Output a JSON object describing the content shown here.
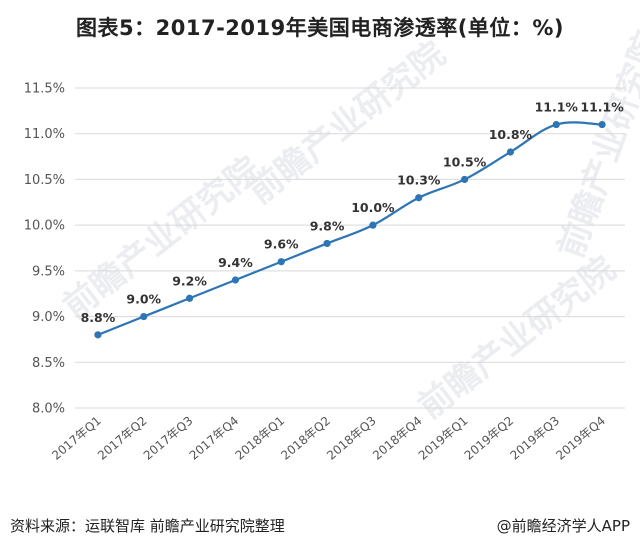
{
  "title": "图表5：2017-2019年美国电商渗透率(单位：%)",
  "footer": {
    "source": "资料来源：运联智库 前瞻产业研究院整理",
    "credit": "@前瞻经济学人APP"
  },
  "watermark": "前瞻产业研究院",
  "colors": {
    "line": "#2e75b6",
    "grid": "#d9d9d9"
  },
  "chart_data": {
    "type": "line",
    "title": "图表5：2017-2019年美国电商渗透率(单位：%)",
    "xlabel": "",
    "ylabel": "",
    "categories": [
      "2017年Q1",
      "2017年Q2",
      "2017年Q3",
      "2017年Q4",
      "2018年Q1",
      "2018年Q2",
      "2018年Q3",
      "2018年Q4",
      "2019年Q1",
      "2019年Q2",
      "2019年Q3",
      "2019年Q4"
    ],
    "series": [
      {
        "values": [
          8.8,
          9.0,
          9.2,
          9.4,
          9.6,
          9.8,
          10.0,
          10.3,
          10.5,
          10.8,
          11.1,
          11.1
        ],
        "labels": [
          "8.8%",
          "9.0%",
          "9.2%",
          "9.4%",
          "9.6%",
          "9.8%",
          "10.0%",
          "10.3%",
          "10.5%",
          "10.8%",
          "11.1%",
          "11.1%"
        ]
      }
    ],
    "ylim": [
      8.0,
      11.5
    ],
    "yticks": [
      8.0,
      8.5,
      9.0,
      9.5,
      10.0,
      10.5,
      11.0,
      11.5
    ],
    "ytick_labels": [
      "8.0%",
      "8.5%",
      "9.0%",
      "9.5%",
      "10.0%",
      "10.5%",
      "11.0%",
      "11.5%"
    ],
    "grid": true,
    "legend": "none"
  }
}
